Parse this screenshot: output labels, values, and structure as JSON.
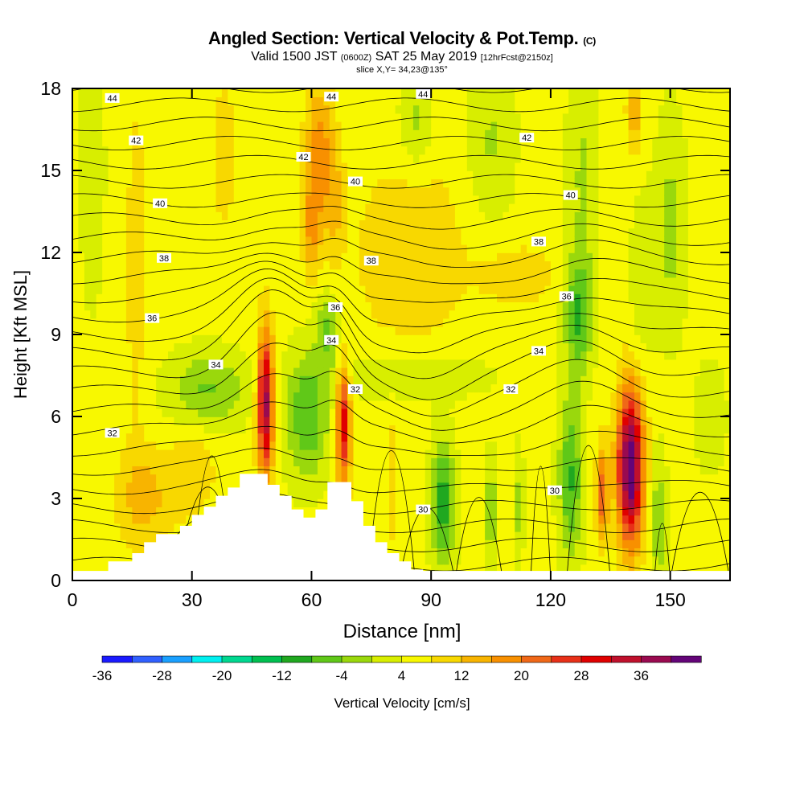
{
  "header": {
    "title": "Angled Section: Vertical Velocity & Pot.Temp.",
    "title_mark": "(C)",
    "valid_a": "Valid 1500 JST",
    "valid_b": "(0600Z)",
    "valid_c": "SAT 25 May 2019",
    "valid_d": "[12hrFcst@2150z]",
    "slice": "slice X,Y= 34,23@135°"
  },
  "chart_data": {
    "type": "heatmap",
    "title": "Angled Section: Vertical Velocity & Pot.Temp.",
    "xlabel": "Distance [nm]",
    "ylabel": "Height [Kft MSL]",
    "xlim": [
      0,
      165
    ],
    "ylim": [
      0,
      18
    ],
    "x_ticks": [
      0,
      30,
      60,
      90,
      120,
      150
    ],
    "y_ticks": [
      0,
      3,
      6,
      9,
      12,
      15,
      18
    ],
    "grid": false,
    "colorbar": {
      "label": "Vertical Velocity [cm/s]",
      "tick_labels": [
        "-36",
        "-28",
        "-20",
        "-12",
        "-4",
        "4",
        "12",
        "20",
        "28",
        "36"
      ],
      "colors": [
        "#1a1aff",
        "#3060ff",
        "#1aa0ff",
        "#00f0f0",
        "#00d890",
        "#00c050",
        "#20a820",
        "#60c818",
        "#9ad80c",
        "#d8ee00",
        "#f8f800",
        "#f8d800",
        "#f8b400",
        "#f89000",
        "#f06818",
        "#e83018",
        "#e00000",
        "#c0102c",
        "#9a0a50",
        "#640478"
      ]
    },
    "theta_labels": [
      {
        "x": 10,
        "y": 17.65,
        "text": "44"
      },
      {
        "x": 65,
        "y": 17.7,
        "text": "44"
      },
      {
        "x": 88,
        "y": 17.8,
        "text": "44"
      },
      {
        "x": 16,
        "y": 16.1,
        "text": "42"
      },
      {
        "x": 58,
        "y": 15.5,
        "text": "42"
      },
      {
        "x": 114,
        "y": 16.2,
        "text": "42"
      },
      {
        "x": 22,
        "y": 13.8,
        "text": "40"
      },
      {
        "x": 71,
        "y": 14.6,
        "text": "40"
      },
      {
        "x": 125,
        "y": 14.1,
        "text": "40"
      },
      {
        "x": 23,
        "y": 11.8,
        "text": "38"
      },
      {
        "x": 75,
        "y": 11.7,
        "text": "38"
      },
      {
        "x": 117,
        "y": 12.4,
        "text": "38"
      },
      {
        "x": 20,
        "y": 9.6,
        "text": "36"
      },
      {
        "x": 66,
        "y": 10.0,
        "text": "36"
      },
      {
        "x": 124,
        "y": 10.4,
        "text": "36"
      },
      {
        "x": 36,
        "y": 7.9,
        "text": "34"
      },
      {
        "x": 65,
        "y": 8.8,
        "text": "34"
      },
      {
        "x": 117,
        "y": 8.4,
        "text": "34"
      },
      {
        "x": 10,
        "y": 5.4,
        "text": "32"
      },
      {
        "x": 71,
        "y": 7.0,
        "text": "32"
      },
      {
        "x": 110,
        "y": 7.0,
        "text": "32"
      },
      {
        "x": 88,
        "y": 2.6,
        "text": "30"
      },
      {
        "x": 121,
        "y": 3.3,
        "text": "30"
      }
    ],
    "terrain": [
      [
        9,
        0
      ],
      [
        9,
        0.7
      ],
      [
        15,
        0.7
      ],
      [
        15,
        1.0
      ],
      [
        18,
        1.0
      ],
      [
        18,
        1.4
      ],
      [
        21,
        1.4
      ],
      [
        21,
        1.7
      ],
      [
        27,
        1.7
      ],
      [
        27,
        2.0
      ],
      [
        30,
        2.0
      ],
      [
        30,
        2.4
      ],
      [
        33,
        2.4
      ],
      [
        33,
        2.7
      ],
      [
        36,
        2.7
      ],
      [
        36,
        3.1
      ],
      [
        39,
        3.1
      ],
      [
        39,
        3.4
      ],
      [
        42,
        3.4
      ],
      [
        42,
        3.9
      ],
      [
        49,
        3.9
      ],
      [
        49,
        3.5
      ],
      [
        52,
        3.5
      ],
      [
        52,
        3.1
      ],
      [
        55,
        3.1
      ],
      [
        55,
        2.6
      ],
      [
        58,
        2.6
      ],
      [
        58,
        2.3
      ],
      [
        61,
        2.3
      ],
      [
        61,
        2.6
      ],
      [
        64,
        2.6
      ],
      [
        64,
        3.6
      ],
      [
        70,
        3.6
      ],
      [
        70,
        2.9
      ],
      [
        73,
        2.9
      ],
      [
        73,
        2.0
      ],
      [
        76,
        2.0
      ],
      [
        76,
        1.4
      ],
      [
        79,
        1.4
      ],
      [
        79,
        1.0
      ],
      [
        82,
        1.0
      ],
      [
        82,
        0.7
      ],
      [
        85,
        0.7
      ],
      [
        85,
        0.4
      ],
      [
        88,
        0.4
      ],
      [
        88,
        0
      ]
    ]
  }
}
